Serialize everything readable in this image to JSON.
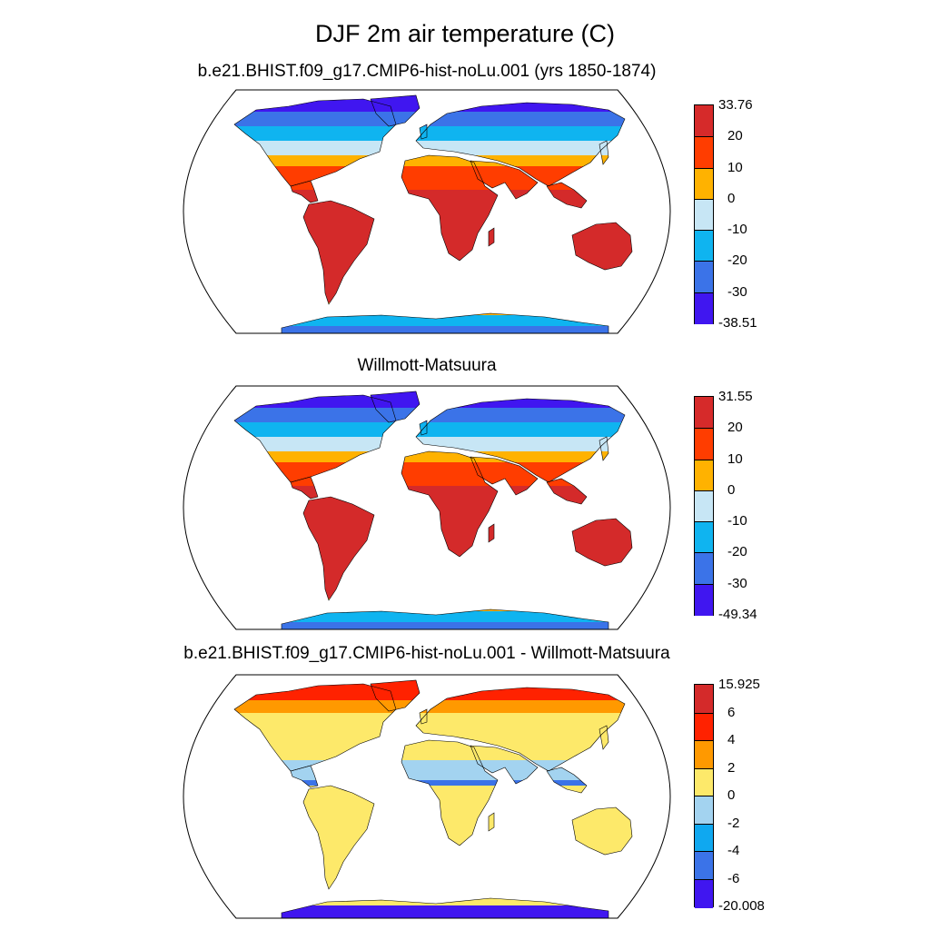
{
  "title": "DJF 2m air temperature (C)",
  "panels": [
    {
      "title": "b.e21.BHIST.f09_g17.CMIP6-hist-noLu.001 (yrs 1850-1874)",
      "colorbar": {
        "colors": [
          "#d62a2a",
          "#ff3d00",
          "#ffb200",
          "#c7e6f5",
          "#0fb4f0",
          "#3b73e8",
          "#4016f0"
        ],
        "labels": [
          "33.76",
          "20",
          "10",
          "0",
          "-10",
          "-20",
          "-30",
          "-38.51"
        ]
      },
      "palette": {
        "hot": "#d42a2a",
        "warm": "#ff3d00",
        "mild": "#ffb200",
        "cool": "#c7e6f5",
        "cold": "#0fb4f0",
        "colder": "#3b73e8",
        "coldest": "#4016f0"
      }
    },
    {
      "title": "Willmott-Matsuura",
      "colorbar": {
        "colors": [
          "#d62a2a",
          "#ff3d00",
          "#ffb200",
          "#c7e6f5",
          "#0fb4f0",
          "#3b73e8",
          "#4016f0"
        ],
        "labels": [
          "31.55",
          "20",
          "10",
          "0",
          "-10",
          "-20",
          "-30",
          "-49.34"
        ]
      },
      "palette": {
        "hot": "#d42a2a",
        "warm": "#ff3d00",
        "mild": "#ffb200",
        "cool": "#c7e6f5",
        "cold": "#0fb4f0",
        "colder": "#3b73e8",
        "coldest": "#4016f0"
      }
    },
    {
      "title": "b.e21.BHIST.f09_g17.CMIP6-hist-noLu.001 - Willmott-Matsuura",
      "colorbar": {
        "colors": [
          "#d42a2a",
          "#ff2200",
          "#ff9900",
          "#fde96a",
          "#a3d3f0",
          "#0fa8f0",
          "#3b73e8",
          "#4016f0"
        ],
        "labels": [
          "15.925",
          "6",
          "4",
          "2",
          "0",
          "-2",
          "-4",
          "-6",
          "-20.008"
        ]
      },
      "palette": {
        "base": "#fde96a",
        "warm": "#ff9900",
        "hot": "#ff2200",
        "cool": "#a3d3f0",
        "cold": "#3b73e8",
        "coldest": "#4016f0"
      }
    }
  ]
}
